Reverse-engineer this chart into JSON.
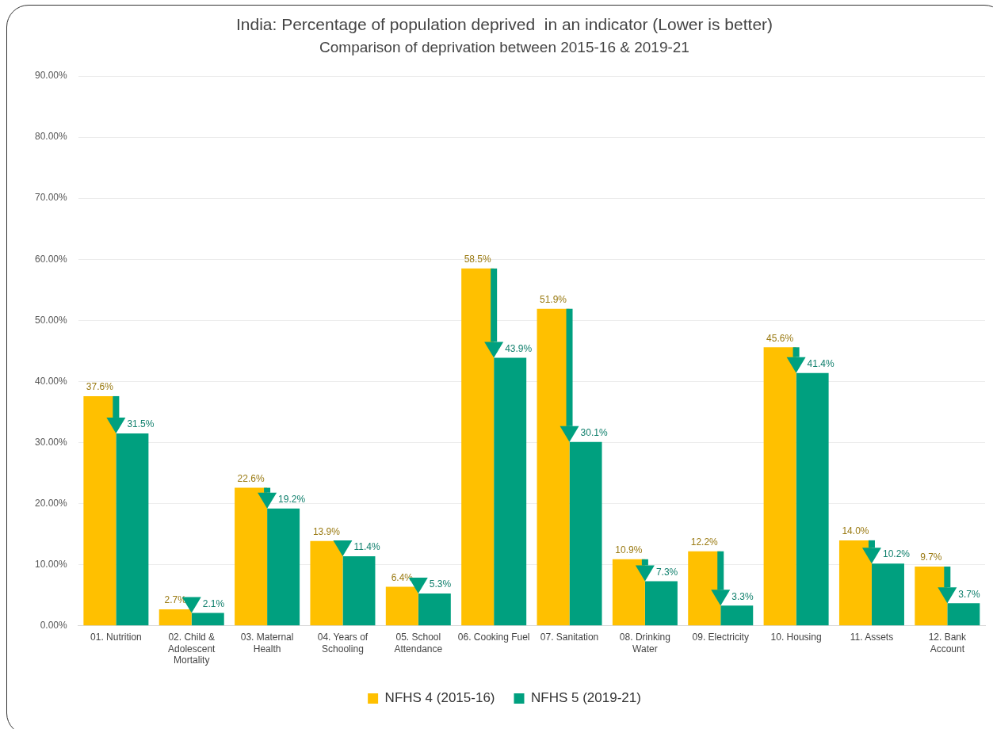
{
  "chart_data": {
    "type": "bar",
    "title": "India: Percentage of population deprived  in an indicator (Lower is better)",
    "subtitle": "Comparison of deprivation between 2015-16 & 2019-21",
    "categories": [
      "01. Nutrition",
      "02. Child & Adolescent Mortality",
      "03. Maternal Health",
      "04. Years of Schooling",
      "05. School Attendance",
      "06. Cooking Fuel",
      "07. Sanitation",
      "08. Drinking Water",
      "09. Electricity",
      "10. Housing",
      "11. Assets",
      "12. Bank Account"
    ],
    "series": [
      {
        "name": "NFHS 4 (2015-16)",
        "color": "#ffc000",
        "values": [
          37.6,
          2.7,
          22.6,
          13.9,
          6.4,
          58.5,
          51.9,
          10.9,
          12.2,
          45.6,
          14.0,
          9.7
        ],
        "value_labels": [
          "37.6%",
          "2.7%",
          "22.6%",
          "13.9%",
          "6.4%",
          "58.5%",
          "51.9%",
          "10.9%",
          "12.2%",
          "45.6%",
          "14.0%",
          "9.7%"
        ]
      },
      {
        "name": "NFHS 5 (2019-21)",
        "color": "#00a07f",
        "values": [
          31.5,
          2.1,
          19.2,
          11.4,
          5.3,
          43.9,
          30.1,
          7.3,
          3.3,
          41.4,
          10.2,
          3.7
        ],
        "value_labels": [
          "31.5%",
          "2.1%",
          "19.2%",
          "11.4%",
          "5.3%",
          "43.9%",
          "30.1%",
          "7.3%",
          "3.3%",
          "41.4%",
          "10.2%",
          "3.7%"
        ]
      }
    ],
    "ylim": [
      0,
      90
    ],
    "yticks": [
      {
        "value": 0,
        "label": "0.00%"
      },
      {
        "value": 10,
        "label": "10.00%"
      },
      {
        "value": 20,
        "label": "20.00%"
      },
      {
        "value": 30,
        "label": "30.00%"
      },
      {
        "value": 40,
        "label": "40.00%"
      },
      {
        "value": 50,
        "label": "50.00%"
      },
      {
        "value": 60,
        "label": "60.00%"
      },
      {
        "value": 70,
        "label": "70.00%"
      },
      {
        "value": 80,
        "label": "80.00%"
      },
      {
        "value": 90,
        "label": "90.00%"
      }
    ],
    "grid": "y",
    "legend": "bottom"
  }
}
